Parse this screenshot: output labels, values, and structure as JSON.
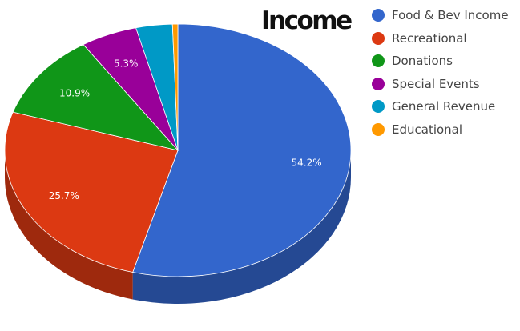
{
  "chart_data": {
    "type": "pie",
    "title": "Income",
    "categories": [
      "Food & Bev Income",
      "Recreational",
      "Donations",
      "Special Events",
      "General Revenue",
      "Educational"
    ],
    "values": [
      54.2,
      25.7,
      10.9,
      5.3,
      3.4,
      0.5
    ],
    "unit": "%",
    "data_labels": [
      "54.2%",
      "25.7%",
      "10.9%",
      "5.3%",
      "",
      ""
    ],
    "colors": [
      "#3366cc",
      "#dc3912",
      "#109618",
      "#990099",
      "#0099c6",
      "#ff9900"
    ],
    "style": "3d",
    "legend_position": "right"
  }
}
